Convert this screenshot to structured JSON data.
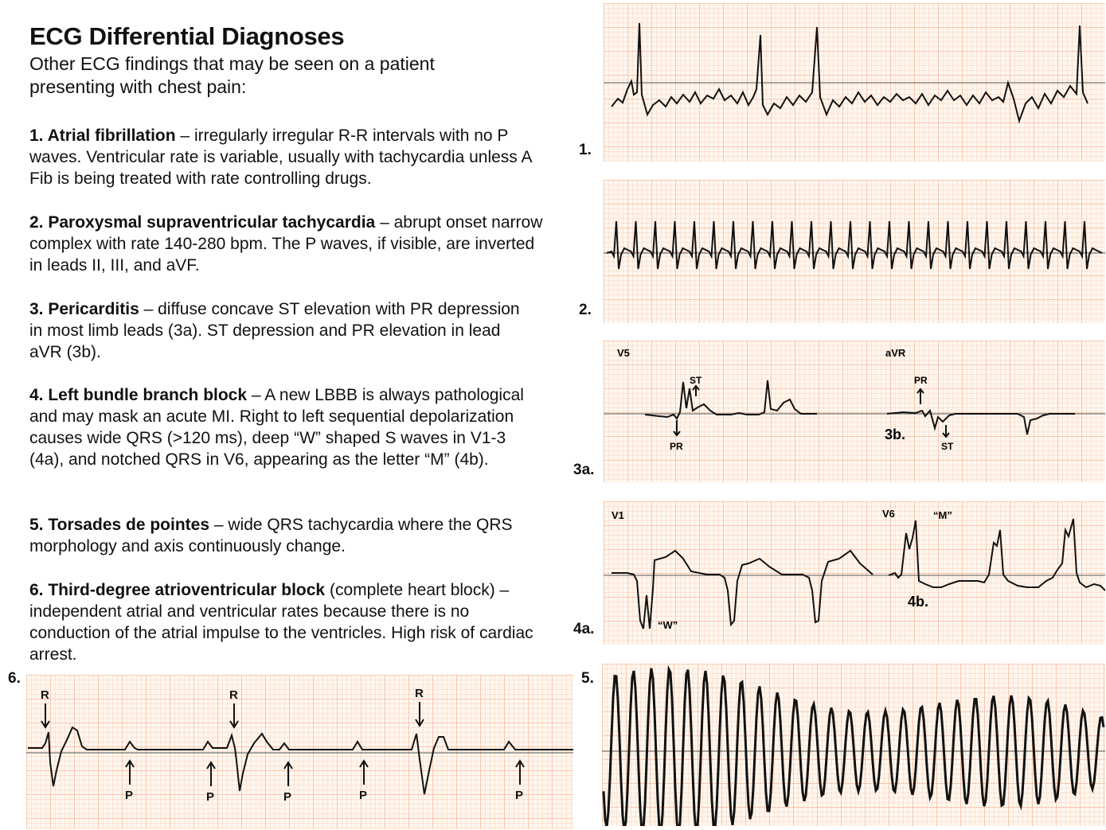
{
  "header": {
    "title": "ECG Differential Diagnoses",
    "subtitle": "Other ECG findings that may be seen on a patient presenting with chest pain:"
  },
  "findings": [
    {
      "number": "1.",
      "name": "Atrial fibrillation",
      "sep": " – ",
      "description": "irregularly irregular R-R intervals with no P waves. Ventricular rate is variable, usually with tachycardia unless A Fib is being treated with rate controlling drugs."
    },
    {
      "number": "2.",
      "name": "Paroxysmal supraventricular tachycardia",
      "sep": " – ",
      "description": "abrupt onset narrow complex with rate 140-280 bpm. The P waves, if visible, are inverted in leads II, III, and aVF."
    },
    {
      "number": "3.",
      "name": "Pericarditis",
      "sep": " – ",
      "description": "diffuse concave ST elevation with PR depression in most limb leads (3a). ST depression and PR elevation in lead aVR (3b)."
    },
    {
      "number": "4.",
      "name": "Left bundle branch block",
      "sep": " – ",
      "description": "A new LBBB is always pathological and may mask an acute MI. Right to left sequential depolarization causes wide QRS (>120 ms), deep “W” shaped S waves in V1-3 (4a), and notched QRS in V6, appearing as the letter “M” (4b)."
    },
    {
      "number": "5.",
      "name": "Torsades de pointes",
      "sep": " – ",
      "description": "wide QRS tachycardia where the QRS morphology and axis continuously change."
    },
    {
      "number": "6.",
      "name": "Third-degree atrioventricular block",
      "sep": " ",
      "description": "(complete heart block) – independent atrial and ventricular rates because there is no conduction of the atrial impulse to the ventricles. High risk of cardiac arrest."
    }
  ],
  "strips": {
    "s1": {
      "label": "1."
    },
    "s2": {
      "label": "2."
    },
    "s3": {
      "label": "3a.",
      "lead_left": "V5",
      "lead_right": "aVR",
      "sub_label": "3b.",
      "st": "ST",
      "pr": "PR"
    },
    "s4": {
      "label": "4a.",
      "lead_left": "V1",
      "lead_right": "V6",
      "sub_label": "4b.",
      "w": "“W”",
      "m": "“M”"
    },
    "s5": {
      "label": "5."
    },
    "s6": {
      "label": "6.",
      "r": "R",
      "p": "P"
    }
  },
  "colors": {
    "grid_minor": "#f7c9a8",
    "grid_major": "#ef9f74",
    "paper": "#fff6ee",
    "trace": "#111111"
  }
}
